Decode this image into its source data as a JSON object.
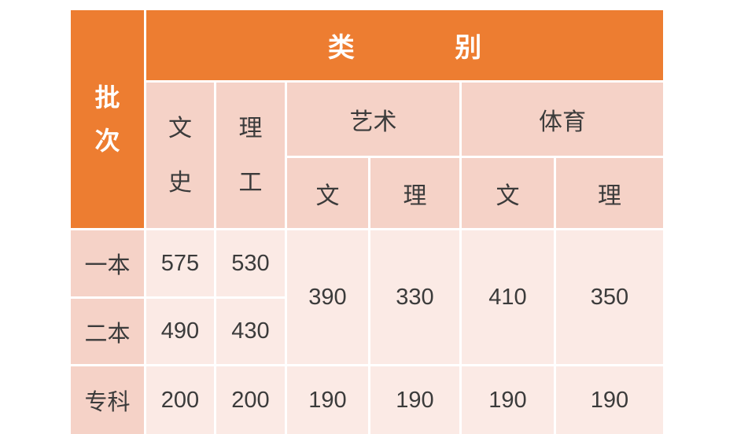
{
  "table": {
    "corner_header": "批\n次",
    "category_header": "类 别",
    "col_groups": {
      "wenshi": "文\n史",
      "ligong": "理\n工",
      "yishu": "艺术",
      "tiyu": "体育"
    },
    "subcols": {
      "yishu_wen": "文",
      "yishu_li": "理",
      "tiyu_wen": "文",
      "tiyu_li": "理"
    },
    "rows": [
      {
        "label": "一本",
        "wenshi": "575",
        "ligong": "530"
      },
      {
        "label": "二本",
        "wenshi": "490",
        "ligong": "430"
      },
      {
        "label": "专科",
        "wenshi": "200",
        "ligong": "200",
        "yishu_wen": "190",
        "yishu_li": "190",
        "tiyu_wen": "190",
        "tiyu_li": "190"
      }
    ],
    "merged_values": {
      "yishu_wen": "390",
      "yishu_li": "330",
      "tiyu_wen": "410",
      "tiyu_li": "350"
    }
  },
  "colors": {
    "orange": "#ED7D31",
    "header_pink": "#F5D2C7",
    "cell_pink": "#FBEAE5",
    "text": "#3B3B3B",
    "header_text": "#FFFFFF"
  }
}
